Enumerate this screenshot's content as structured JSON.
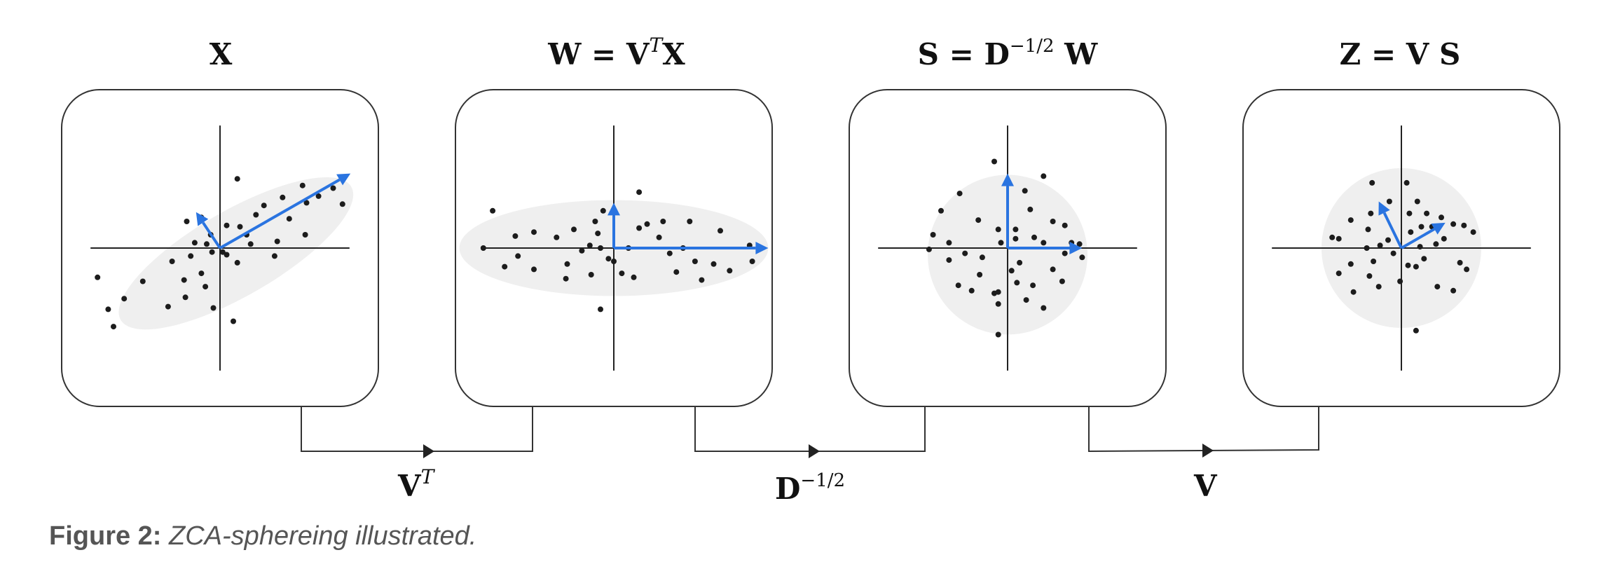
{
  "panels": [
    {
      "id": "X",
      "title": {
        "main": "X",
        "sup": "",
        "rest": ""
      },
      "blob": {
        "shape": "ellipse",
        "cx": 0.12,
        "cy": -0.04,
        "rx": 1.0,
        "ry": 0.32,
        "angle_deg": 30
      },
      "points": [
        [
          0.13,
          0.52
        ],
        [
          -0.92,
          -0.22
        ],
        [
          -0.58,
          -0.25
        ],
        [
          -0.72,
          -0.38
        ],
        [
          -0.84,
          -0.46
        ],
        [
          -0.8,
          -0.59
        ],
        [
          -0.39,
          -0.44
        ],
        [
          -0.26,
          -0.37
        ],
        [
          -0.36,
          -0.1
        ],
        [
          -0.22,
          -0.06
        ],
        [
          -0.19,
          0.04
        ],
        [
          -0.1,
          0.03
        ],
        [
          -0.06,
          -0.03
        ],
        [
          -0.07,
          0.1
        ],
        [
          0.05,
          -0.05
        ],
        [
          0.05,
          0.17
        ],
        [
          -0.27,
          -0.24
        ],
        [
          -0.14,
          -0.19
        ],
        [
          -0.11,
          -0.29
        ],
        [
          0.02,
          -0.03
        ],
        [
          0.13,
          -0.11
        ],
        [
          0.2,
          0.1
        ],
        [
          0.15,
          0.16
        ],
        [
          0.23,
          0.03
        ],
        [
          0.27,
          0.25
        ],
        [
          0.33,
          0.32
        ],
        [
          0.43,
          0.05
        ],
        [
          0.47,
          0.38
        ],
        [
          0.52,
          0.22
        ],
        [
          0.65,
          0.34
        ],
        [
          0.62,
          0.47
        ],
        [
          0.74,
          0.39
        ],
        [
          0.85,
          0.45
        ],
        [
          0.92,
          0.33
        ],
        [
          0.64,
          0.1
        ],
        [
          0.41,
          -0.06
        ],
        [
          -0.05,
          -0.45
        ],
        [
          -0.25,
          0.2
        ],
        [
          -0.14,
          0.23
        ],
        [
          0.1,
          -0.55
        ]
      ],
      "vectors": [
        {
          "to": [
            0.98,
            0.56
          ]
        },
        {
          "to": [
            -0.18,
            0.27
          ]
        }
      ]
    },
    {
      "id": "W",
      "title": {
        "main": "W = V",
        "sup": "T",
        "rest": "X"
      },
      "blob": {
        "shape": "ellipse",
        "cx": 0.0,
        "cy": 0.0,
        "rx": 1.16,
        "ry": 0.36,
        "angle_deg": 0
      },
      "points": [
        [
          -0.91,
          0.28
        ],
        [
          -0.98,
          0.0
        ],
        [
          -0.82,
          -0.14
        ],
        [
          -0.74,
          0.09
        ],
        [
          -0.6,
          0.12
        ],
        [
          -0.6,
          -0.16
        ],
        [
          -0.43,
          0.08
        ],
        [
          -0.35,
          -0.12
        ],
        [
          -0.36,
          -0.23
        ],
        [
          -0.17,
          -0.2
        ],
        [
          -0.12,
          0.11
        ],
        [
          -0.14,
          0.2
        ],
        [
          -0.08,
          0.28
        ],
        [
          -0.1,
          0.0
        ],
        [
          -0.04,
          -0.08
        ],
        [
          0.0,
          -0.1
        ],
        [
          0.06,
          -0.19
        ],
        [
          0.11,
          0.0
        ],
        [
          0.15,
          -0.22
        ],
        [
          0.19,
          0.15
        ],
        [
          0.25,
          0.18
        ],
        [
          0.34,
          0.08
        ],
        [
          0.37,
          0.2
        ],
        [
          0.47,
          -0.18
        ],
        [
          0.52,
          0.0
        ],
        [
          0.57,
          0.2
        ],
        [
          0.61,
          -0.1
        ],
        [
          0.66,
          -0.24
        ],
        [
          0.75,
          -0.12
        ],
        [
          0.8,
          0.13
        ],
        [
          0.87,
          -0.17
        ],
        [
          1.02,
          0.02
        ],
        [
          1.04,
          -0.1
        ],
        [
          0.19,
          0.42
        ],
        [
          -0.1,
          -0.46
        ],
        [
          -0.3,
          0.14
        ],
        [
          -0.24,
          -0.02
        ],
        [
          0.42,
          -0.04
        ],
        [
          -0.72,
          -0.06
        ],
        [
          -0.18,
          0.02
        ]
      ],
      "vectors": [
        {
          "to": [
            1.16,
            0.0
          ]
        },
        {
          "to": [
            0.0,
            0.34
          ]
        }
      ]
    },
    {
      "id": "S",
      "title": {
        "main": "S = D",
        "sup": "−1/2",
        "rest": " W"
      },
      "blob": {
        "shape": "ellipse",
        "cx": 0.0,
        "cy": -0.05,
        "rx": 0.6,
        "ry": 0.6,
        "angle_deg": 0
      },
      "points": [
        [
          -0.1,
          0.65
        ],
        [
          -0.36,
          0.41
        ],
        [
          -0.22,
          0.21
        ],
        [
          -0.5,
          0.28
        ],
        [
          -0.56,
          0.1
        ],
        [
          -0.44,
          0.04
        ],
        [
          -0.59,
          -0.01
        ],
        [
          -0.44,
          -0.09
        ],
        [
          -0.32,
          -0.04
        ],
        [
          -0.19,
          -0.07
        ],
        [
          -0.21,
          -0.2
        ],
        [
          -0.37,
          -0.28
        ],
        [
          -0.27,
          -0.32
        ],
        [
          -0.1,
          -0.34
        ],
        [
          -0.07,
          -0.42
        ],
        [
          0.03,
          -0.17
        ],
        [
          0.07,
          -0.26
        ],
        [
          0.09,
          -0.11
        ],
        [
          0.14,
          -0.39
        ],
        [
          0.19,
          -0.28
        ],
        [
          0.27,
          -0.45
        ],
        [
          0.34,
          -0.16
        ],
        [
          0.41,
          -0.25
        ],
        [
          0.43,
          -0.04
        ],
        [
          0.48,
          0.04
        ],
        [
          0.56,
          -0.07
        ],
        [
          0.54,
          0.03
        ],
        [
          0.43,
          0.17
        ],
        [
          0.34,
          0.2
        ],
        [
          0.27,
          0.04
        ],
        [
          0.17,
          0.29
        ],
        [
          0.06,
          0.14
        ],
        [
          0.13,
          0.43
        ],
        [
          0.2,
          0.08
        ],
        [
          0.06,
          0.07
        ],
        [
          -0.07,
          0.14
        ],
        [
          -0.05,
          0.04
        ],
        [
          0.27,
          0.54
        ],
        [
          -0.07,
          -0.33
        ],
        [
          -0.07,
          -0.65
        ]
      ],
      "vectors": [
        {
          "to": [
            0.0,
            0.56
          ]
        },
        {
          "to": [
            0.56,
            0.0
          ]
        }
      ]
    },
    {
      "id": "Z",
      "title": {
        "main": "Z = V S",
        "sup": "",
        "rest": ""
      },
      "blob": {
        "shape": "ellipse",
        "cx": 0.0,
        "cy": 0.0,
        "rx": 0.6,
        "ry": 0.6,
        "angle_deg": 0
      },
      "points": [
        [
          -0.22,
          0.49
        ],
        [
          -0.09,
          0.35
        ],
        [
          -0.23,
          0.26
        ],
        [
          -0.25,
          0.14
        ],
        [
          -0.47,
          0.07
        ],
        [
          -0.38,
          0.21
        ],
        [
          -0.52,
          0.08
        ],
        [
          -0.26,
          0.0
        ],
        [
          -0.16,
          0.02
        ],
        [
          -0.1,
          0.06
        ],
        [
          -0.06,
          -0.04
        ],
        [
          -0.21,
          -0.1
        ],
        [
          -0.24,
          -0.21
        ],
        [
          -0.38,
          -0.12
        ],
        [
          -0.47,
          -0.19
        ],
        [
          -0.36,
          -0.33
        ],
        [
          -0.17,
          -0.29
        ],
        [
          -0.01,
          -0.25
        ],
        [
          0.05,
          -0.13
        ],
        [
          0.11,
          -0.14
        ],
        [
          0.17,
          -0.08
        ],
        [
          0.14,
          0.01
        ],
        [
          0.26,
          0.03
        ],
        [
          0.32,
          0.07
        ],
        [
          0.3,
          0.23
        ],
        [
          0.23,
          0.16
        ],
        [
          0.15,
          0.16
        ],
        [
          0.07,
          0.12
        ],
        [
          0.06,
          0.26
        ],
        [
          0.12,
          0.35
        ],
        [
          0.19,
          0.26
        ],
        [
          0.39,
          0.18
        ],
        [
          0.47,
          0.17
        ],
        [
          0.54,
          0.12
        ],
        [
          0.44,
          -0.11
        ],
        [
          0.49,
          -0.16
        ],
        [
          0.39,
          -0.32
        ],
        [
          0.27,
          -0.29
        ],
        [
          0.04,
          0.49
        ],
        [
          0.11,
          -0.62
        ]
      ],
      "vectors": [
        {
          "to": [
            -0.17,
            0.35
          ]
        },
        {
          "to": [
            0.33,
            0.19
          ]
        }
      ]
    }
  ],
  "operations": [
    {
      "id": "op-vt",
      "main": "V",
      "sup": "T",
      "rest": ""
    },
    {
      "id": "op-d",
      "main": "D",
      "sup": "−1/2",
      "rest": ""
    },
    {
      "id": "op-v",
      "main": "V",
      "sup": "",
      "rest": ""
    }
  ],
  "caption": {
    "label": "Figure 2:",
    "text": "ZCA-sphereing illustrated."
  },
  "colors": {
    "vector": "#2a74e0",
    "blob": "#efefef",
    "point": "#1c1c1c"
  }
}
